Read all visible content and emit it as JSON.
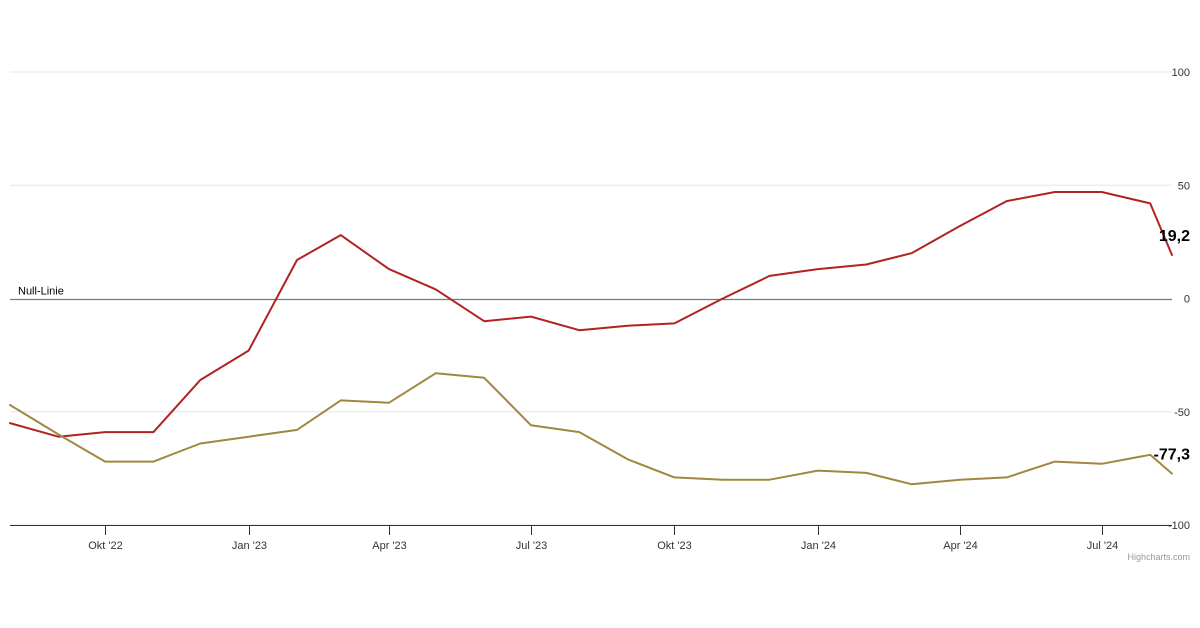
{
  "chart_data": {
    "type": "line",
    "title": "",
    "xlabel": "",
    "ylabel": "",
    "ylim": [
      -100,
      100
    ],
    "y_ticks": [
      {
        "value": 100,
        "label": "100"
      },
      {
        "value": 50,
        "label": "50"
      },
      {
        "value": 0,
        "label": "0"
      },
      {
        "value": -50,
        "label": "-50"
      },
      {
        "value": -100,
        "label": "-100"
      }
    ],
    "x_range": [
      "2022-08-01",
      "2024-08-15"
    ],
    "x_ticks": [
      {
        "date": "2022-10-01",
        "label": "Okt '22"
      },
      {
        "date": "2023-01-01",
        "label": "Jan '23"
      },
      {
        "date": "2023-04-01",
        "label": "Apr '23"
      },
      {
        "date": "2023-07-01",
        "label": "Jul '23"
      },
      {
        "date": "2023-10-01",
        "label": "Okt '23"
      },
      {
        "date": "2024-01-01",
        "label": "Jan '24"
      },
      {
        "date": "2024-04-01",
        "label": "Apr '24"
      },
      {
        "date": "2024-07-01",
        "label": "Jul '24"
      }
    ],
    "plot_line": {
      "value": 0,
      "label": "Null-Linie"
    },
    "grid": true,
    "series": [
      {
        "color": "#b22222",
        "end_label": "19,2",
        "points": [
          {
            "x": "2022-08-01",
            "y": -55
          },
          {
            "x": "2022-09-01",
            "y": -61
          },
          {
            "x": "2022-10-01",
            "y": -59
          },
          {
            "x": "2022-11-01",
            "y": -59
          },
          {
            "x": "2022-12-01",
            "y": -36
          },
          {
            "x": "2023-01-01",
            "y": -23
          },
          {
            "x": "2023-02-01",
            "y": 17
          },
          {
            "x": "2023-03-01",
            "y": 28
          },
          {
            "x": "2023-04-01",
            "y": 13
          },
          {
            "x": "2023-05-01",
            "y": 4
          },
          {
            "x": "2023-06-01",
            "y": -10
          },
          {
            "x": "2023-07-01",
            "y": -8
          },
          {
            "x": "2023-08-01",
            "y": -14
          },
          {
            "x": "2023-09-01",
            "y": -12
          },
          {
            "x": "2023-10-01",
            "y": -11
          },
          {
            "x": "2023-11-01",
            "y": 0
          },
          {
            "x": "2023-12-01",
            "y": 10
          },
          {
            "x": "2024-01-01",
            "y": 13
          },
          {
            "x": "2024-02-01",
            "y": 15
          },
          {
            "x": "2024-03-01",
            "y": 20
          },
          {
            "x": "2024-04-01",
            "y": 32
          },
          {
            "x": "2024-05-01",
            "y": 43
          },
          {
            "x": "2024-06-01",
            "y": 47
          },
          {
            "x": "2024-07-01",
            "y": 47
          },
          {
            "x": "2024-08-01",
            "y": 42
          },
          {
            "x": "2024-08-15",
            "y": 19.2
          }
        ]
      },
      {
        "color": "#a08840",
        "end_label": "-77,3",
        "points": [
          {
            "x": "2022-08-01",
            "y": -47
          },
          {
            "x": "2022-09-01",
            "y": -60
          },
          {
            "x": "2022-10-01",
            "y": -72
          },
          {
            "x": "2022-11-01",
            "y": -72
          },
          {
            "x": "2022-12-01",
            "y": -64
          },
          {
            "x": "2023-01-01",
            "y": -61
          },
          {
            "x": "2023-02-01",
            "y": -58
          },
          {
            "x": "2023-03-01",
            "y": -45
          },
          {
            "x": "2023-04-01",
            "y": -46
          },
          {
            "x": "2023-05-01",
            "y": -33
          },
          {
            "x": "2023-06-01",
            "y": -35
          },
          {
            "x": "2023-07-01",
            "y": -56
          },
          {
            "x": "2023-08-01",
            "y": -59
          },
          {
            "x": "2023-09-01",
            "y": -71
          },
          {
            "x": "2023-10-01",
            "y": -79
          },
          {
            "x": "2023-11-01",
            "y": -80
          },
          {
            "x": "2023-12-01",
            "y": -80
          },
          {
            "x": "2024-01-01",
            "y": -76
          },
          {
            "x": "2024-02-01",
            "y": -77
          },
          {
            "x": "2024-03-01",
            "y": -82
          },
          {
            "x": "2024-04-01",
            "y": -80
          },
          {
            "x": "2024-05-01",
            "y": -79
          },
          {
            "x": "2024-06-01",
            "y": -72
          },
          {
            "x": "2024-07-01",
            "y": -73
          },
          {
            "x": "2024-08-01",
            "y": -69
          },
          {
            "x": "2024-08-15",
            "y": -77.3
          }
        ]
      }
    ],
    "credits": "Highcharts.com"
  }
}
